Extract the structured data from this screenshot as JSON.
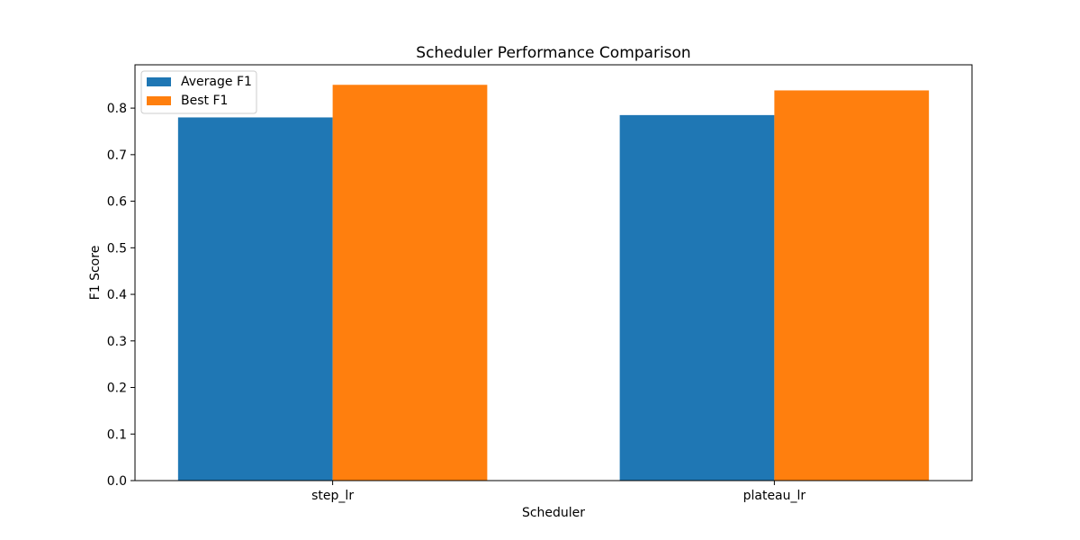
{
  "chart_data": {
    "type": "bar",
    "title": "Scheduler Performance Comparison",
    "xlabel": "Scheduler",
    "ylabel": "F1 Score",
    "categories": [
      "step_lr",
      "plateau_lr"
    ],
    "series": [
      {
        "name": "Average F1",
        "values": [
          0.78,
          0.785
        ],
        "color": "#1f77b4"
      },
      {
        "name": "Best F1",
        "values": [
          0.85,
          0.838
        ],
        "color": "#ff7f0e"
      }
    ],
    "ylim": [
      0,
      0.893
    ],
    "yticks": [
      "0.0",
      "0.1",
      "0.2",
      "0.3",
      "0.4",
      "0.5",
      "0.6",
      "0.7",
      "0.8"
    ],
    "grid": false,
    "legend": "top-left"
  }
}
